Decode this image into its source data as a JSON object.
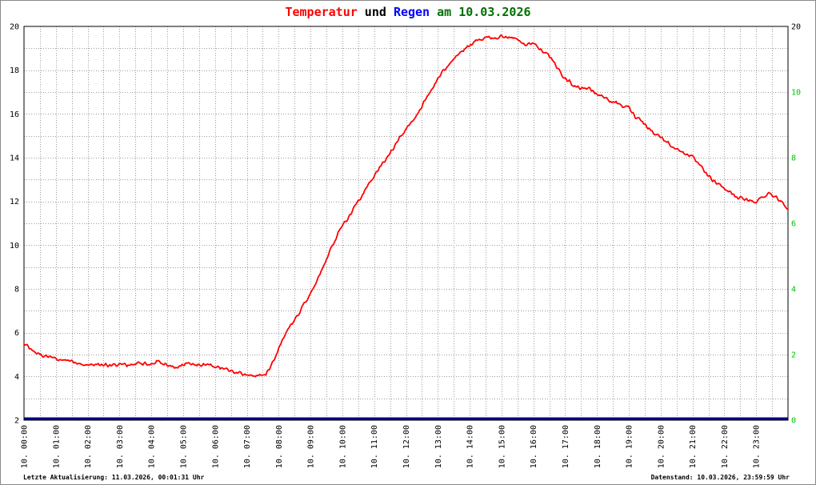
{
  "title": {
    "temperatur": "Temperatur",
    "und": " und ",
    "regen": "Regen",
    "date": " am 10.03.2026"
  },
  "footer": {
    "left": "Letzte Aktualisierung: 11.03.2026, 00:01:31 Uhr",
    "right": "Datenstand: 10.03.2026, 23:59:59 Uhr"
  },
  "colors": {
    "temperature_series": "#ff0000",
    "rain_series": "#000080",
    "rain_axis_labels": "#00c000",
    "title_date": "#007000"
  },
  "chart_data": {
    "type": "line",
    "title": "Temperatur und Regen am 10.03.2026",
    "grid": true,
    "x_axis": {
      "range_hours": [
        0,
        24
      ],
      "grid_interval_minutes": 30,
      "labels": [
        "10. 00:00",
        "10. 01:00",
        "10. 02:00",
        "10. 03:00",
        "10. 04:00",
        "10. 05:00",
        "10. 06:00",
        "10. 07:00",
        "10. 08:00",
        "10. 09:00",
        "10. 10:00",
        "10. 11:00",
        "10. 12:00",
        "10. 13:00",
        "10. 14:00",
        "10. 15:00",
        "10. 16:00",
        "10. 17:00",
        "10. 18:00",
        "10. 19:00",
        "10. 20:00",
        "10. 21:00",
        "10. 22:00",
        "10. 23:00"
      ]
    },
    "y_left": {
      "range": [
        2,
        20
      ],
      "ticks": [
        20,
        18,
        16,
        14,
        12,
        10,
        8,
        6,
        4,
        2
      ]
    },
    "y_right": {
      "range": [
        0,
        12
      ],
      "top_label": "20",
      "ticks": [
        10,
        8,
        6,
        4,
        2,
        0
      ]
    },
    "series": [
      {
        "name": "Temperatur",
        "color": "#ff0000",
        "axis": "left",
        "points": [
          [
            0,
            5.5
          ],
          [
            0.3,
            5.15
          ],
          [
            0.5,
            5.0
          ],
          [
            0.8,
            4.9
          ],
          [
            1,
            4.8
          ],
          [
            1.3,
            4.75
          ],
          [
            1.5,
            4.7
          ],
          [
            1.8,
            4.6
          ],
          [
            2,
            4.5
          ],
          [
            2.3,
            4.55
          ],
          [
            2.5,
            4.5
          ],
          [
            2.8,
            4.5
          ],
          [
            3,
            4.55
          ],
          [
            3.3,
            4.5
          ],
          [
            3.5,
            4.6
          ],
          [
            3.8,
            4.6
          ],
          [
            4,
            4.55
          ],
          [
            4.2,
            4.7
          ],
          [
            4.4,
            4.6
          ],
          [
            4.6,
            4.5
          ],
          [
            4.8,
            4.45
          ],
          [
            5,
            4.5
          ],
          [
            5.2,
            4.6
          ],
          [
            5.4,
            4.55
          ],
          [
            5.6,
            4.5
          ],
          [
            5.8,
            4.5
          ],
          [
            6,
            4.45
          ],
          [
            6.2,
            4.4
          ],
          [
            6.4,
            4.3
          ],
          [
            6.6,
            4.2
          ],
          [
            6.8,
            4.15
          ],
          [
            7,
            4.1
          ],
          [
            7.2,
            4.05
          ],
          [
            7.4,
            4.05
          ],
          [
            7.6,
            4.15
          ],
          [
            7.8,
            4.6
          ],
          [
            8,
            5.3
          ],
          [
            8.2,
            5.9
          ],
          [
            8.4,
            6.4
          ],
          [
            8.6,
            6.8
          ],
          [
            8.8,
            7.3
          ],
          [
            9,
            7.8
          ],
          [
            9.2,
            8.4
          ],
          [
            9.4,
            9.0
          ],
          [
            9.6,
            9.7
          ],
          [
            9.8,
            10.3
          ],
          [
            10,
            10.9
          ],
          [
            10.2,
            11.3
          ],
          [
            10.4,
            11.8
          ],
          [
            10.6,
            12.2
          ],
          [
            10.8,
            12.7
          ],
          [
            11,
            13.2
          ],
          [
            11.2,
            13.6
          ],
          [
            11.4,
            14.0
          ],
          [
            11.6,
            14.4
          ],
          [
            11.8,
            14.9
          ],
          [
            12,
            15.3
          ],
          [
            12.2,
            15.7
          ],
          [
            12.4,
            16.1
          ],
          [
            12.6,
            16.6
          ],
          [
            12.8,
            17.1
          ],
          [
            13,
            17.6
          ],
          [
            13.2,
            18.0
          ],
          [
            13.4,
            18.4
          ],
          [
            13.6,
            18.7
          ],
          [
            13.8,
            18.9
          ],
          [
            14,
            19.1
          ],
          [
            14.2,
            19.3
          ],
          [
            14.4,
            19.4
          ],
          [
            14.6,
            19.5
          ],
          [
            14.8,
            19.4
          ],
          [
            15,
            19.6
          ],
          [
            15.2,
            19.5
          ],
          [
            15.4,
            19.5
          ],
          [
            15.6,
            19.3
          ],
          [
            15.8,
            19.15
          ],
          [
            16,
            19.25
          ],
          [
            16.2,
            18.95
          ],
          [
            16.4,
            18.85
          ],
          [
            16.6,
            18.4
          ],
          [
            16.8,
            18.0
          ],
          [
            17,
            17.6
          ],
          [
            17.2,
            17.4
          ],
          [
            17.4,
            17.2
          ],
          [
            17.6,
            17.2
          ],
          [
            17.8,
            17.1
          ],
          [
            18,
            16.9
          ],
          [
            18.2,
            16.8
          ],
          [
            18.4,
            16.6
          ],
          [
            18.6,
            16.5
          ],
          [
            18.8,
            16.35
          ],
          [
            19,
            16.3
          ],
          [
            19.2,
            15.9
          ],
          [
            19.4,
            15.7
          ],
          [
            19.6,
            15.4
          ],
          [
            19.8,
            15.1
          ],
          [
            20,
            14.95
          ],
          [
            20.2,
            14.7
          ],
          [
            20.4,
            14.5
          ],
          [
            20.6,
            14.3
          ],
          [
            20.8,
            14.2
          ],
          [
            21,
            14.0
          ],
          [
            21.2,
            13.7
          ],
          [
            21.4,
            13.3
          ],
          [
            21.6,
            13.0
          ],
          [
            21.8,
            12.8
          ],
          [
            22,
            12.6
          ],
          [
            22.2,
            12.4
          ],
          [
            22.4,
            12.2
          ],
          [
            22.6,
            12.1
          ],
          [
            22.8,
            12.0
          ],
          [
            23,
            12.0
          ],
          [
            23.2,
            12.2
          ],
          [
            23.4,
            12.4
          ],
          [
            23.6,
            12.2
          ],
          [
            23.8,
            12.0
          ],
          [
            24,
            11.7
          ]
        ]
      },
      {
        "name": "Regen",
        "color": "#000080",
        "axis": "right",
        "points": [
          [
            0,
            0
          ],
          [
            24,
            0
          ]
        ]
      }
    ]
  }
}
